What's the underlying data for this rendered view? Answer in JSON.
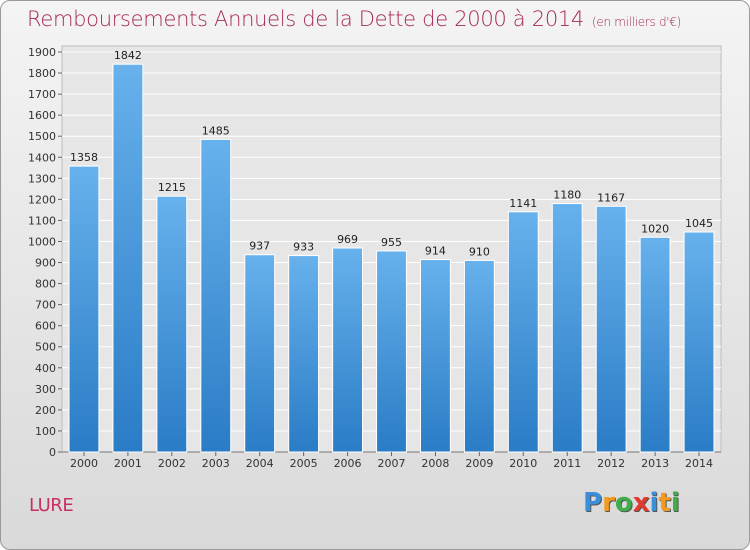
{
  "title": "Remboursements Annuels de la Dette de 2000 à 2014",
  "subtitle": "(en milliers d'€)",
  "place": "LURE",
  "logo": {
    "text": "Proxiti",
    "letters": [
      {
        "ch": "P",
        "color": "#3b8fd9"
      },
      {
        "ch": "r",
        "color": "#f39a1f"
      },
      {
        "ch": "o",
        "color": "#3fae49"
      },
      {
        "ch": "x",
        "color": "#e23a2f"
      },
      {
        "ch": "i",
        "color": "#3b8fd9"
      },
      {
        "ch": "t",
        "color": "#f39a1f"
      },
      {
        "ch": "i",
        "color": "#3fae49"
      }
    ]
  },
  "colors": {
    "title": "#a52a5a",
    "bar_top": "#67b1ec",
    "bar_bottom": "#2a7cc6"
  },
  "chart_data": {
    "type": "bar",
    "title": "Remboursements Annuels de la Dette de 2000 à 2014",
    "subtitle": "(en milliers d'€)",
    "categories": [
      "2000",
      "2001",
      "2002",
      "2003",
      "2004",
      "2005",
      "2006",
      "2007",
      "2008",
      "2009",
      "2010",
      "2011",
      "2012",
      "2013",
      "2014"
    ],
    "values": [
      1358,
      1842,
      1215,
      1485,
      937,
      933,
      969,
      955,
      914,
      910,
      1141,
      1180,
      1167,
      1020,
      1045
    ],
    "ylim": [
      0,
      1900
    ],
    "yticks": [
      0,
      100,
      200,
      300,
      400,
      500,
      600,
      700,
      800,
      900,
      1000,
      1100,
      1200,
      1300,
      1400,
      1500,
      1600,
      1700,
      1800,
      1900
    ],
    "grid": true,
    "xlabel": "",
    "ylabel": ""
  }
}
